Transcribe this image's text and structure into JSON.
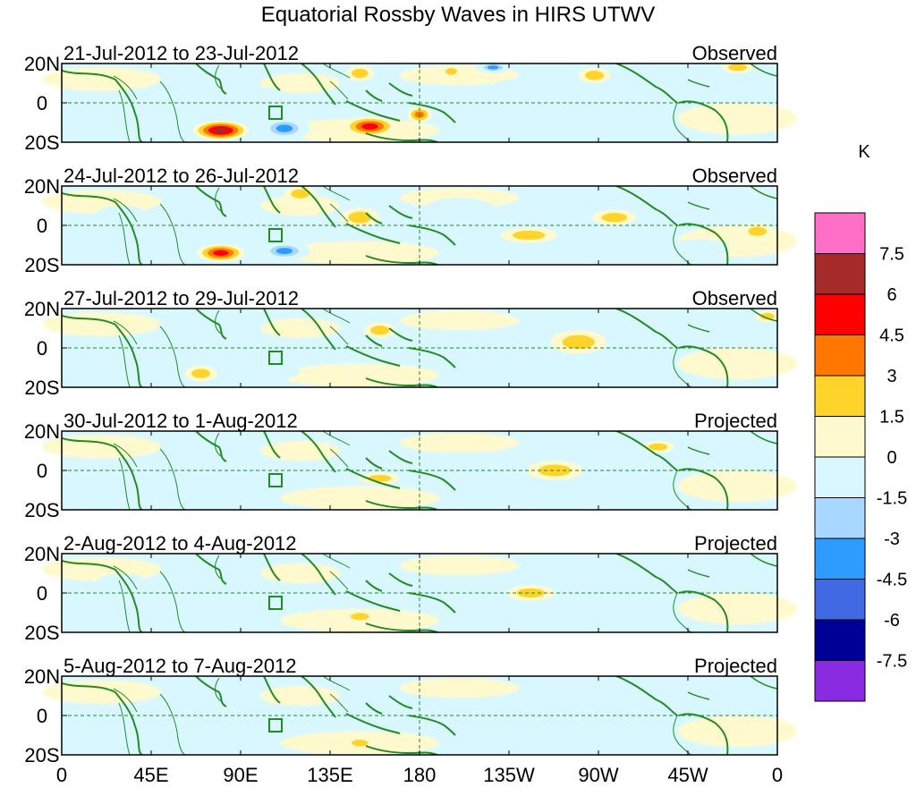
{
  "chart_data": {
    "type": "heatmap",
    "title": "Equatorial Rossby Waves in HIRS UTWV",
    "x_ticks": [
      "0",
      "45E",
      "90E",
      "135E",
      "180",
      "135W",
      "90W",
      "45W",
      "0"
    ],
    "y_ticks": [
      "20N",
      "0",
      "20S"
    ],
    "xlim": [
      0,
      360
    ],
    "ylim": [
      -20,
      20
    ],
    "colorbar": {
      "unit": "K",
      "levels": [
        "7.5",
        "6",
        "4.5",
        "3",
        "1.5",
        "0",
        "-1.5",
        "-3",
        "-4.5",
        "-6",
        "-7.5"
      ],
      "colors": [
        "#ff6ec7",
        "#a52a2a",
        "#ff0000",
        "#ff7700",
        "#ffd42a",
        "#fffacd",
        "#d9f7ff",
        "#a8d8ff",
        "#2e9bff",
        "#4169e1",
        "#000096",
        "#8a2be2"
      ]
    },
    "panels": [
      {
        "dates": "21-Jul-2012 to 23-Jul-2012",
        "status": "Observed",
        "anomalies": [
          {
            "lon": 80,
            "lat": -14,
            "rx": 14,
            "ry": 5,
            "value": 7
          },
          {
            "lon": 112,
            "lat": -13,
            "rx": 13,
            "ry": 6,
            "value": -5.5
          },
          {
            "lon": 155,
            "lat": -12,
            "rx": 13,
            "ry": 5,
            "value": 5
          },
          {
            "lon": 180,
            "lat": -6,
            "rx": 6,
            "ry": 4,
            "value": 4
          },
          {
            "lon": 217,
            "lat": 18,
            "rx": 9,
            "ry": 3,
            "value": -4.5
          },
          {
            "lon": 150,
            "lat": 15,
            "rx": 7,
            "ry": 4,
            "value": 2
          },
          {
            "lon": 196,
            "lat": 16,
            "rx": 5,
            "ry": 3,
            "value": 2
          },
          {
            "lon": 230,
            "lat": 0,
            "rx": 22,
            "ry": 12,
            "value": -1.6
          },
          {
            "lon": 268,
            "lat": 14,
            "rx": 8,
            "ry": 4,
            "value": 2
          },
          {
            "lon": 285,
            "lat": 6,
            "rx": 12,
            "ry": 5,
            "value": -1.6
          },
          {
            "lon": 100,
            "lat": 2,
            "rx": 15,
            "ry": 6,
            "value": -1.6
          },
          {
            "lon": 340,
            "lat": 18,
            "rx": 8,
            "ry": 3,
            "value": 2
          },
          {
            "lon": 30,
            "lat": -16,
            "rx": 12,
            "ry": 4,
            "value": -1.6
          }
        ]
      },
      {
        "dates": "24-Jul-2012 to 26-Jul-2012",
        "status": "Observed",
        "anomalies": [
          {
            "lon": 80,
            "lat": -14,
            "rx": 12,
            "ry": 4.5,
            "value": 5.5
          },
          {
            "lon": 112,
            "lat": -13,
            "rx": 13,
            "ry": 5,
            "value": -5
          },
          {
            "lon": 98,
            "lat": 3,
            "rx": 10,
            "ry": 5,
            "value": -1.6
          },
          {
            "lon": 150,
            "lat": 4,
            "rx": 10,
            "ry": 5,
            "value": 2
          },
          {
            "lon": 120,
            "lat": 16,
            "rx": 8,
            "ry": 4,
            "value": 2
          },
          {
            "lon": 200,
            "lat": 8,
            "rx": 18,
            "ry": 6,
            "value": -1.6
          },
          {
            "lon": 235,
            "lat": -5,
            "rx": 14,
            "ry": 4,
            "value": 2
          },
          {
            "lon": 278,
            "lat": 4,
            "rx": 11,
            "ry": 4,
            "value": 2
          },
          {
            "lon": 350,
            "lat": -3,
            "rx": 8,
            "ry": 4,
            "value": 2
          },
          {
            "lon": 30,
            "lat": 6,
            "rx": 12,
            "ry": 4,
            "value": -1.6
          },
          {
            "lon": 320,
            "lat": -12,
            "rx": 16,
            "ry": 5,
            "value": -1.6
          }
        ]
      },
      {
        "dates": "27-Jul-2012 to 29-Jul-2012",
        "status": "Observed",
        "anomalies": [
          {
            "lon": 70,
            "lat": -13,
            "rx": 8,
            "ry": 4,
            "value": 2.5
          },
          {
            "lon": 108,
            "lat": -12,
            "rx": 12,
            "ry": 4,
            "value": -2
          },
          {
            "lon": 260,
            "lat": 3,
            "rx": 14,
            "ry": 6,
            "value": 2
          },
          {
            "lon": 295,
            "lat": -5,
            "rx": 13,
            "ry": 7,
            "value": -2.2
          },
          {
            "lon": 200,
            "lat": -5,
            "rx": 14,
            "ry": 5,
            "value": -1.6
          },
          {
            "lon": 30,
            "lat": -4,
            "rx": 14,
            "ry": 4,
            "value": -1.6
          },
          {
            "lon": 160,
            "lat": 9,
            "rx": 8,
            "ry": 4,
            "value": 1.6
          },
          {
            "lon": 355,
            "lat": 16,
            "rx": 6,
            "ry": 3,
            "value": 1.6
          }
        ]
      },
      {
        "dates": "30-Jul-2012 to 1-Aug-2012",
        "status": "Projected",
        "anomalies": [
          {
            "lon": 248,
            "lat": 0,
            "rx": 14,
            "ry": 5,
            "value": 2
          },
          {
            "lon": 288,
            "lat": -2,
            "rx": 12,
            "ry": 6,
            "value": -1.8
          },
          {
            "lon": 160,
            "lat": -4,
            "rx": 10,
            "ry": 3,
            "value": 1.6
          },
          {
            "lon": 300,
            "lat": 12,
            "rx": 8,
            "ry": 3,
            "value": 1.6
          },
          {
            "lon": 30,
            "lat": -12,
            "rx": 14,
            "ry": 4,
            "value": -1.6
          }
        ]
      },
      {
        "dates": "2-Aug-2012 to 4-Aug-2012",
        "status": "Projected",
        "anomalies": [
          {
            "lon": 236,
            "lat": 0,
            "rx": 12,
            "ry": 4,
            "value": 2
          },
          {
            "lon": 275,
            "lat": 0,
            "rx": 12,
            "ry": 5,
            "value": -1.6
          },
          {
            "lon": 150,
            "lat": -12,
            "rx": 8,
            "ry": 3,
            "value": 1.6
          },
          {
            "lon": 30,
            "lat": 6,
            "rx": 12,
            "ry": 4,
            "value": -1.6
          }
        ]
      },
      {
        "dates": "5-Aug-2012 to 7-Aug-2012",
        "status": "Projected",
        "anomalies": [
          {
            "lon": 150,
            "lat": -14,
            "rx": 7,
            "ry": 3,
            "value": 2
          },
          {
            "lon": 30,
            "lat": -6,
            "rx": 10,
            "ry": 3,
            "value": -1.6
          },
          {
            "lon": 100,
            "lat": -10,
            "rx": 10,
            "ry": 3,
            "value": -1.6
          }
        ]
      }
    ]
  }
}
